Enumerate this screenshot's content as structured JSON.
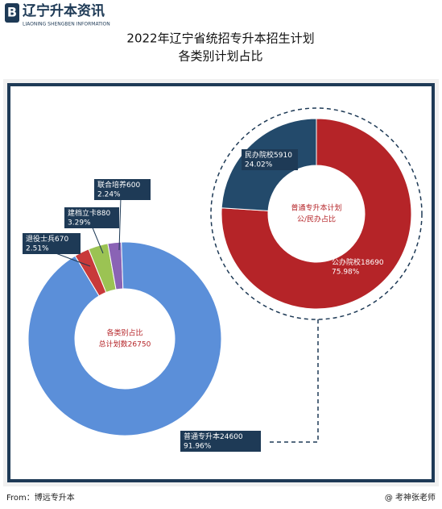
{
  "header": {
    "logo": "辽宁升本资讯",
    "logo_sub": "LIAONING SHENGBEN INFORMATION"
  },
  "title": [
    "2022年辽宁省统招专升本招生计划",
    "各类别计划占比"
  ],
  "chart_data": [
    {
      "type": "donut",
      "center_label": [
        "各类别占比",
        "总计划数26750"
      ],
      "categories": [
        "退役士兵",
        "建档立卡",
        "联合培养",
        "普通专升本"
      ],
      "values": [
        670,
        880,
        600,
        24600
      ],
      "share_labels": [
        "2.51%",
        "3.29%",
        "2.24%",
        "91.96%"
      ],
      "colors": [
        "#c8393a",
        "#9bc353",
        "#8a63b5",
        "#5b8fd9"
      ]
    },
    {
      "type": "donut",
      "center_label": [
        "普通专升本计划",
        "公/民办占比"
      ],
      "categories": [
        "公办院校",
        "民办院校"
      ],
      "values": [
        18690,
        5910
      ],
      "share_labels": [
        "75.98%",
        "24.02%"
      ],
      "colors": [
        "#b52428",
        "#234a6b"
      ]
    }
  ],
  "footer": {
    "source": "From：博远专升本",
    "credit": "@ 考神张老师"
  }
}
